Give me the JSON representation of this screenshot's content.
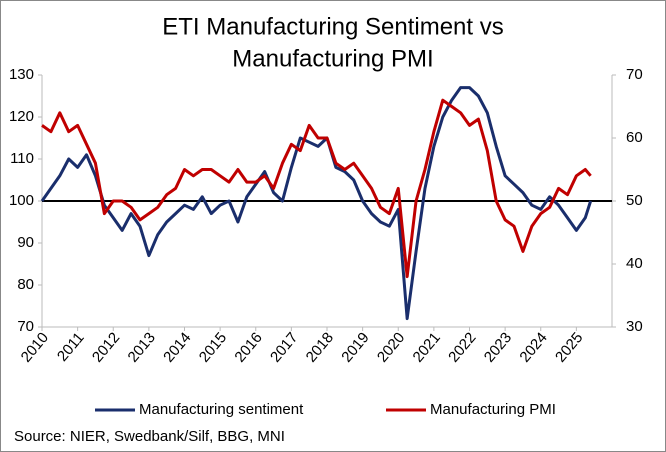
{
  "chart_data": {
    "type": "line",
    "title": [
      "ETI Manufacturing Sentiment vs",
      "Manufacturing PMI"
    ],
    "source": "Source: NIER, Swedbank/Silf, BBG, MNI",
    "x": [
      2010.0,
      2010.25,
      2010.5,
      2010.75,
      2011.0,
      2011.25,
      2011.5,
      2011.75,
      2012.0,
      2012.25,
      2012.5,
      2012.75,
      2013.0,
      2013.25,
      2013.5,
      2013.75,
      2014.0,
      2014.25,
      2014.5,
      2014.75,
      2015.0,
      2015.25,
      2015.5,
      2015.75,
      2016.0,
      2016.25,
      2016.5,
      2016.75,
      2017.0,
      2017.25,
      2017.5,
      2017.75,
      2018.0,
      2018.25,
      2018.5,
      2018.75,
      2019.0,
      2019.25,
      2019.5,
      2019.75,
      2020.0,
      2020.25,
      2020.5,
      2020.75,
      2021.0,
      2021.25,
      2021.5,
      2021.75,
      2022.0,
      2022.25,
      2022.5,
      2022.75,
      2023.0,
      2023.25,
      2023.5,
      2023.75,
      2024.0,
      2024.25,
      2024.5,
      2024.75,
      2025.0,
      2025.25,
      2025.4
    ],
    "series": [
      {
        "name": "Manufacturing sentiment",
        "color": "#1a2e6c",
        "axis": "y",
        "values": [
          100,
          103,
          106,
          110,
          108,
          111,
          106,
          99,
          96,
          93,
          97,
          94,
          87,
          92,
          95,
          97,
          99,
          98,
          101,
          97,
          99,
          100,
          95,
          101,
          104,
          107,
          102,
          100,
          108,
          115,
          114,
          113,
          115,
          108,
          107,
          105,
          100,
          97,
          95,
          94,
          98,
          72,
          88,
          103,
          113,
          120,
          124,
          127,
          127,
          125,
          121,
          113,
          106,
          104,
          102,
          99,
          98,
          101,
          99,
          96,
          93,
          96,
          100
        ]
      },
      {
        "name": "Manufacturing PMI",
        "color": "#c00000",
        "axis": "y2",
        "values": [
          62,
          61,
          64,
          61,
          62,
          59,
          56,
          48,
          50,
          50,
          49,
          47,
          48,
          49,
          51,
          52,
          55,
          54,
          55,
          55,
          54,
          53,
          55,
          53,
          53,
          54,
          52,
          56,
          59,
          58,
          62,
          60,
          60,
          56,
          55,
          56,
          54,
          52,
          49,
          48,
          52,
          38,
          50,
          55,
          61,
          66,
          65,
          64,
          62,
          63,
          58,
          50,
          47,
          46,
          42,
          46,
          48,
          49,
          52,
          51,
          54,
          55,
          54
        ]
      }
    ],
    "xlim": [
      2010,
      2026
    ],
    "xticks": [
      2010,
      2011,
      2012,
      2013,
      2014,
      2015,
      2016,
      2017,
      2018,
      2019,
      2020,
      2021,
      2022,
      2023,
      2024,
      2025
    ],
    "ylim": [
      70,
      130
    ],
    "yticks": [
      70,
      80,
      90,
      100,
      110,
      120,
      130
    ],
    "y2lim": [
      30,
      70
    ],
    "y2ticks": [
      30,
      40,
      50,
      60,
      70
    ],
    "reference_line": 100
  }
}
